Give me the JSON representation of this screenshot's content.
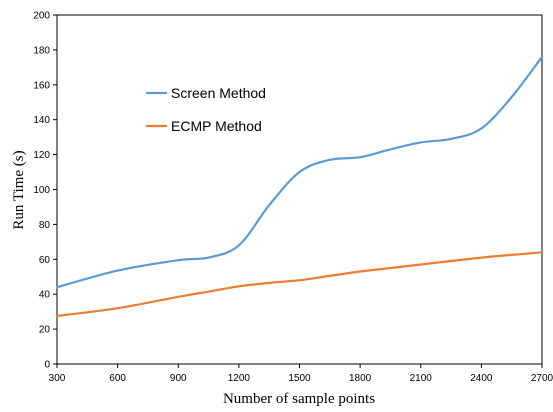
{
  "chart_data": {
    "type": "line",
    "xlabel": "Number of sample points",
    "ylabel": "Run Time (s)",
    "xlim": [
      300,
      2700
    ],
    "ylim": [
      0,
      200
    ],
    "x_ticks": [
      "300",
      "600",
      "900",
      "1200",
      "1500",
      "1800",
      "2100",
      "2400",
      "2700"
    ],
    "y_ticks": [
      "0",
      "20",
      "40",
      "60",
      "80",
      "100",
      "120",
      "140",
      "160",
      "180",
      "200"
    ],
    "grid": false,
    "legend_position": "upper-left inside plot",
    "x": [
      300,
      600,
      900,
      1050,
      1200,
      1350,
      1500,
      1650,
      1800,
      1950,
      2100,
      2250,
      2400,
      2550,
      2700
    ],
    "series": [
      {
        "name": "Screen Method",
        "color": "#5b9bd5",
        "values": [
          44,
          53.5,
          59.5,
          61,
          68,
          91,
          110,
          117,
          118.5,
          123,
          127,
          129,
          135,
          153,
          176
        ]
      },
      {
        "name": "ECMP Method",
        "color": "#ed7d31",
        "values": [
          27.5,
          32,
          38.5,
          41.5,
          44.5,
          46.5,
          48,
          50.5,
          53,
          55,
          57,
          59,
          61,
          62.5,
          64
        ]
      }
    ]
  }
}
